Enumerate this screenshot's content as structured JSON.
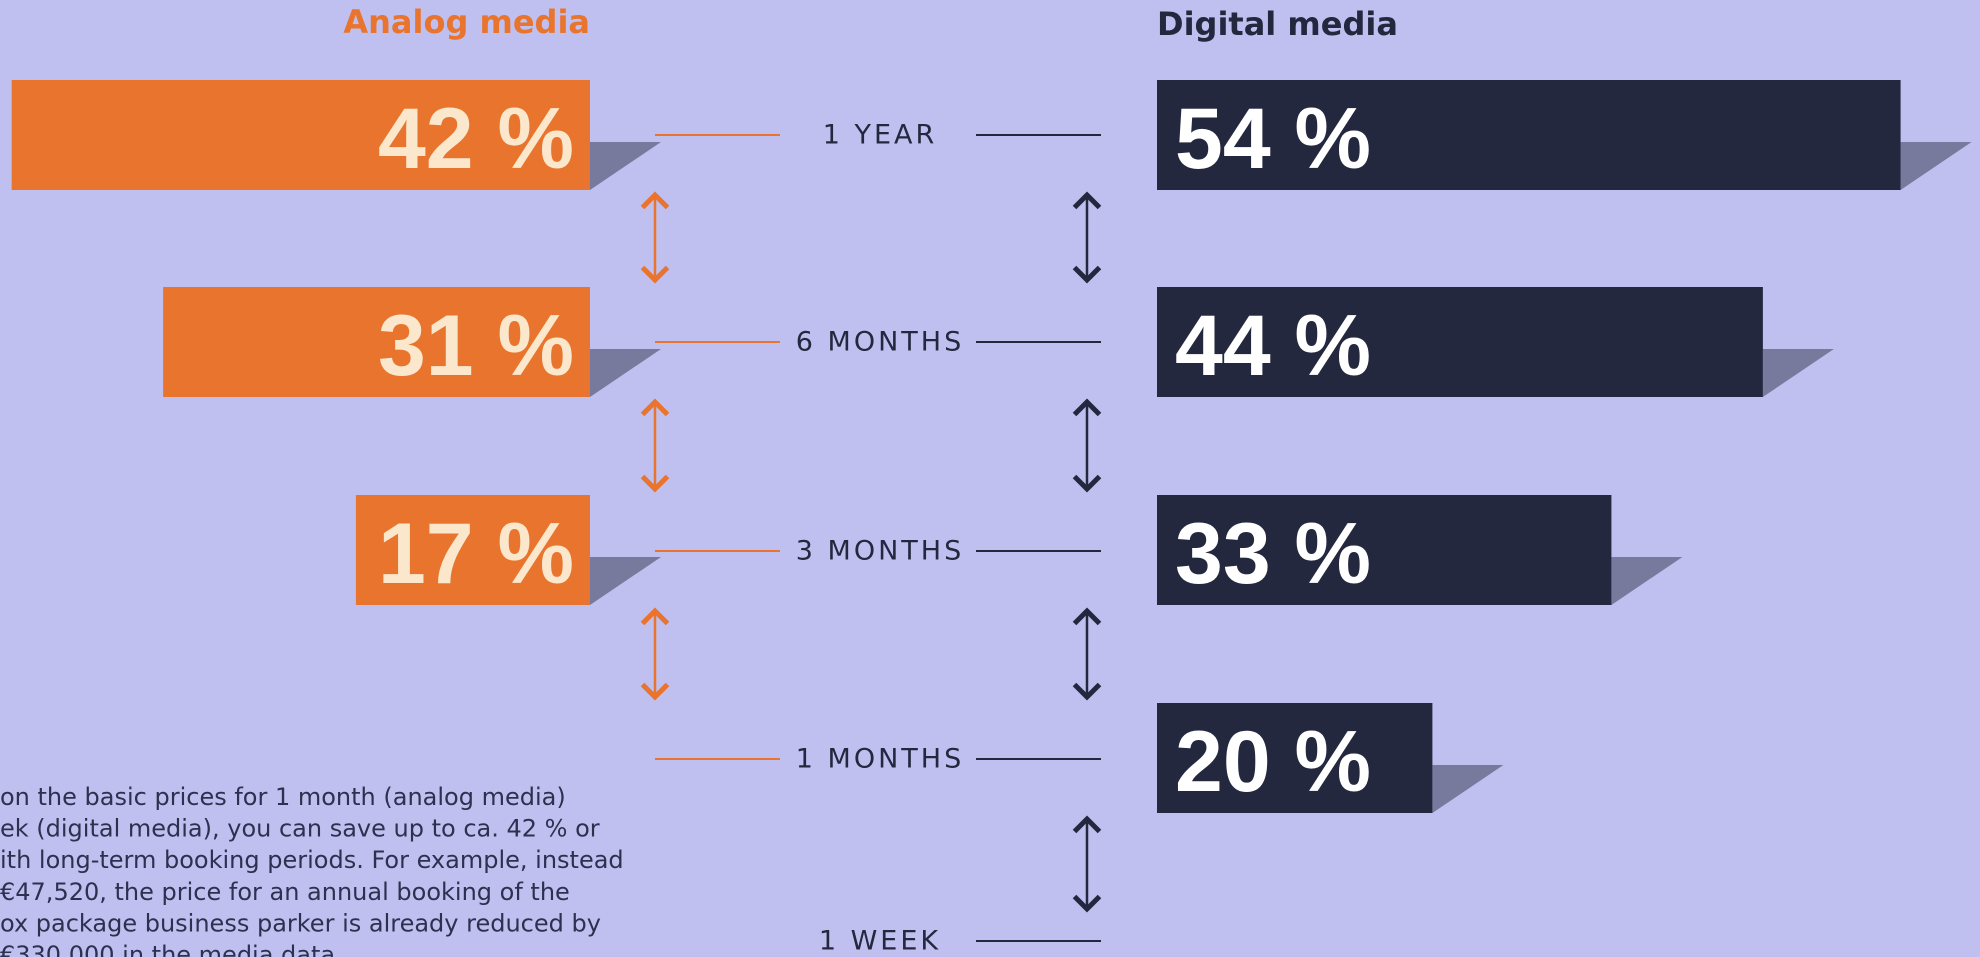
{
  "analog": {
    "title": "Analog media",
    "bars": [
      {
        "value": 42,
        "label": "42 %"
      },
      {
        "value": 31,
        "label": "31 %"
      },
      {
        "value": 17,
        "label": "17 %"
      }
    ]
  },
  "digital": {
    "title": "Digital media",
    "bars": [
      {
        "value": 54,
        "label": "54 %"
      },
      {
        "value": 44,
        "label": "44 %"
      },
      {
        "value": 33,
        "label": "33 %"
      },
      {
        "value": 20,
        "label": "20 %"
      }
    ]
  },
  "periods": [
    "1 YEAR",
    "6 MONTHS",
    "3 MONTHS",
    "1 MONTHS",
    "1 WEEK"
  ],
  "note": [
    "on the basic prices for 1 month (analog media)",
    "ek (digital media), you can save up to ca. 42 % or",
    "ith long-term booking periods. For example, instead",
    "€47,520, the price for an annual booking of the",
    "ox package business parker is already reduced by",
    "€330,000 in the media data"
  ]
}
